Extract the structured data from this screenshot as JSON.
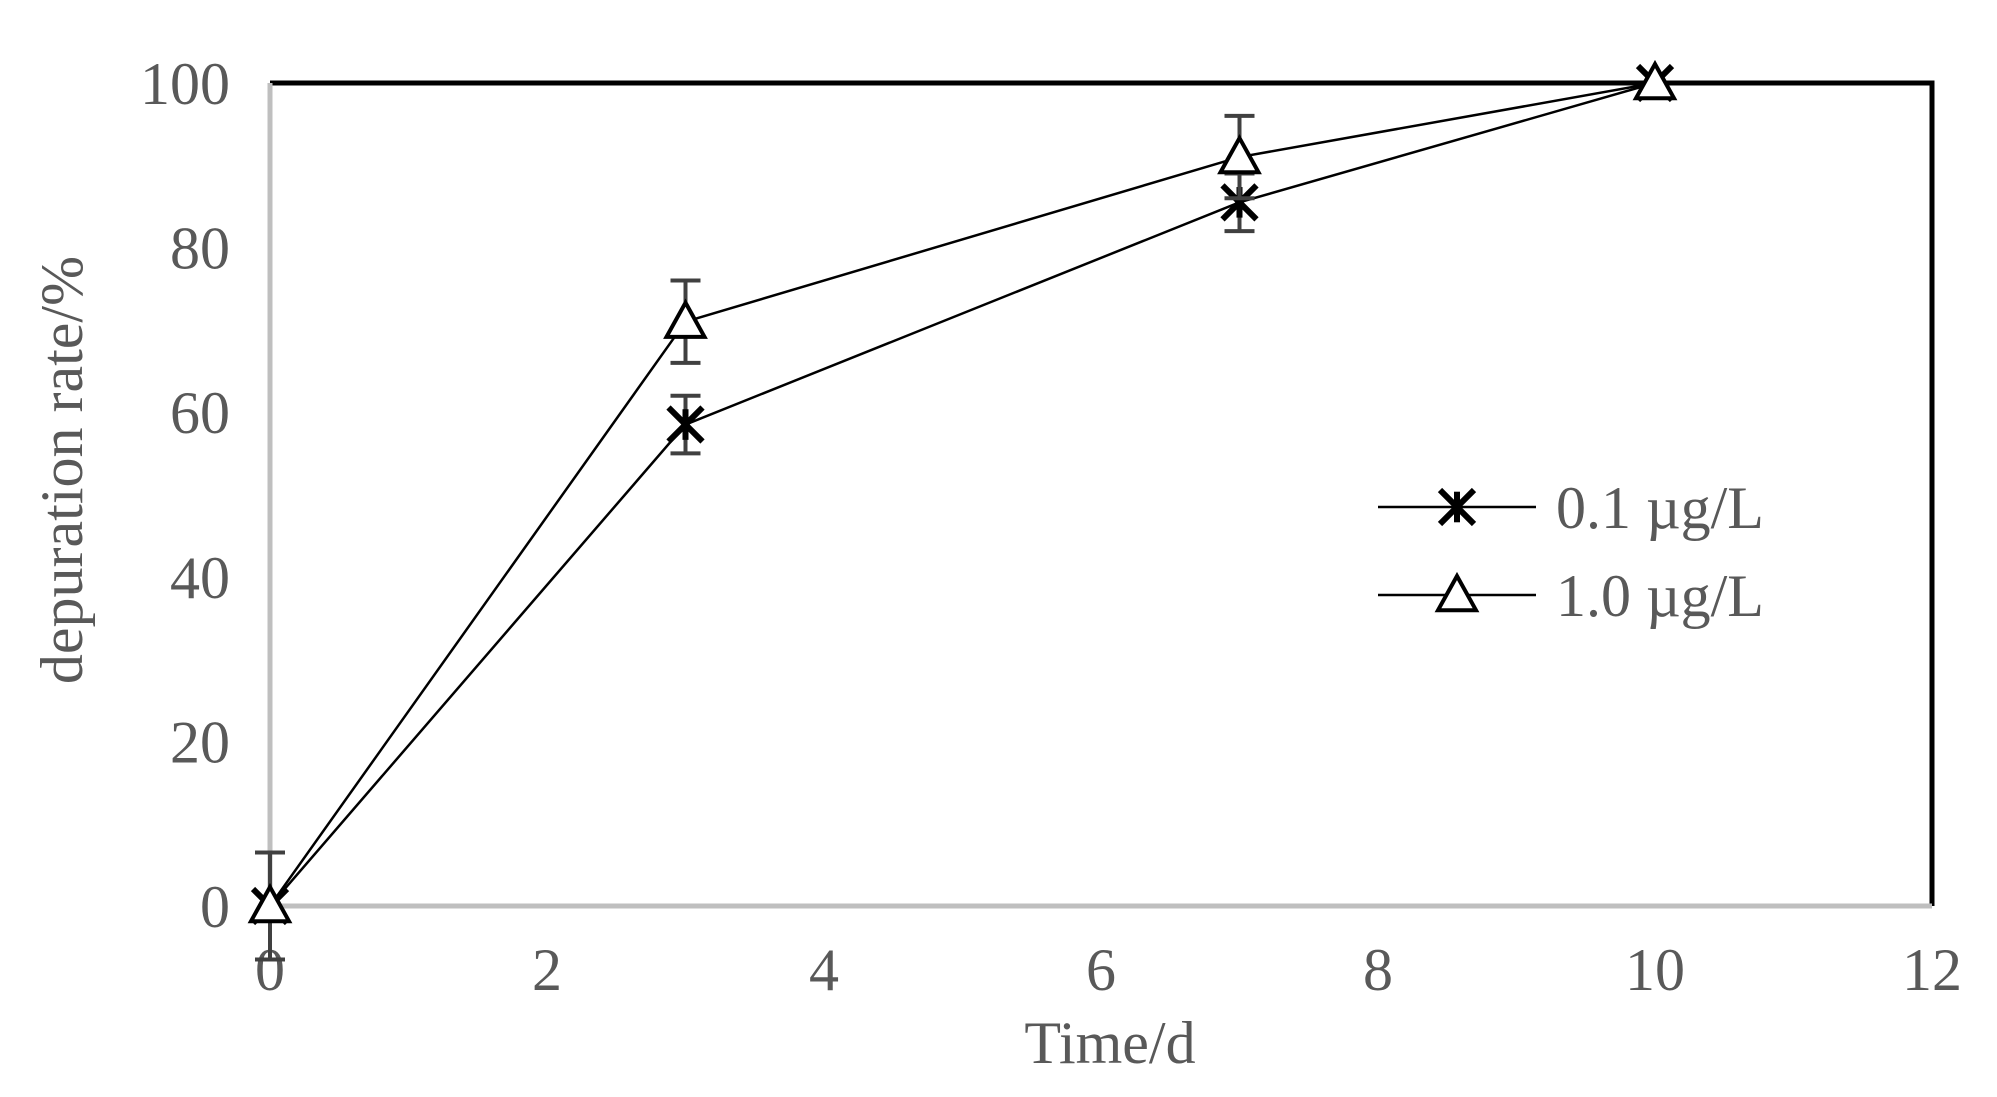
{
  "chart_data": {
    "type": "line",
    "xlabel": "Time/d",
    "ylabel": "depuration rate/%",
    "xlim": [
      0,
      12
    ],
    "ylim": [
      0,
      100
    ],
    "xticks": [
      0,
      2,
      4,
      6,
      8,
      10,
      12
    ],
    "yticks": [
      0,
      20,
      40,
      60,
      80,
      100
    ],
    "grid": false,
    "legend_position": "right",
    "x": [
      0,
      3,
      7,
      10
    ],
    "series": [
      {
        "name": "0.1 µg/L",
        "marker": "asterisk",
        "color": "#000000",
        "values": [
          0,
          58.5,
          85.5,
          100
        ],
        "errors": [
          0,
          3.5,
          3.5,
          0
        ]
      },
      {
        "name": "1.0 µg/L",
        "marker": "triangle",
        "color": "#000000",
        "values": [
          0,
          71,
          91,
          100
        ],
        "errors": [
          6.5,
          5,
          5,
          0
        ]
      }
    ],
    "colors": {
      "axis_gray": "#bfbfbf",
      "text_gray": "#595959",
      "errorbar_gray": "#404040",
      "frame_black": "#000000"
    }
  }
}
